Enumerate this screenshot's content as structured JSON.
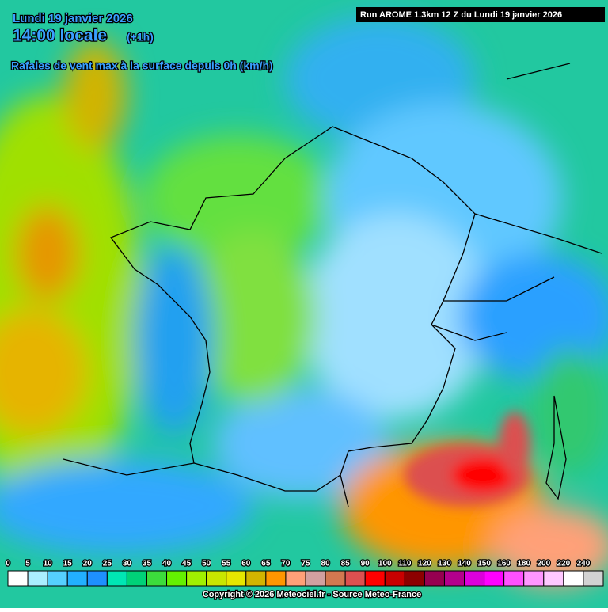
{
  "header": {
    "date": "Lundi 19 janvier 2026",
    "time": "14:00 locale",
    "offset": "(+1h)",
    "subtitle": "Rafales de vent max à la surface depuis 0h (km/h)",
    "run": "Run AROME 1.3km 12 Z du Lundi 19 janvier 2026"
  },
  "legend": {
    "items": [
      {
        "value": 0,
        "color": "#ffffff"
      },
      {
        "value": 5,
        "color": "#aaeeff"
      },
      {
        "value": 10,
        "color": "#55d0ff"
      },
      {
        "value": 15,
        "color": "#22b0ff"
      },
      {
        "value": 20,
        "color": "#1e90ff"
      },
      {
        "value": 25,
        "color": "#00e6b4"
      },
      {
        "value": 30,
        "color": "#00d278"
      },
      {
        "value": 35,
        "color": "#3cdc3c"
      },
      {
        "value": 40,
        "color": "#64f000"
      },
      {
        "value": 45,
        "color": "#a0f000"
      },
      {
        "value": 50,
        "color": "#c8e600"
      },
      {
        "value": 55,
        "color": "#e6e600"
      },
      {
        "value": 60,
        "color": "#d2b400"
      },
      {
        "value": 65,
        "color": "#ff9600"
      },
      {
        "value": 70,
        "color": "#ffa078"
      },
      {
        "value": 75,
        "color": "#d2a0a0"
      },
      {
        "value": 80,
        "color": "#d27850"
      },
      {
        "value": 85,
        "color": "#dc5050"
      },
      {
        "value": 90,
        "color": "#ff0000"
      },
      {
        "value": 100,
        "color": "#c80000"
      },
      {
        "value": 110,
        "color": "#8c0000"
      },
      {
        "value": 120,
        "color": "#960050"
      },
      {
        "value": 130,
        "color": "#b4008c"
      },
      {
        "value": 140,
        "color": "#dc00dc"
      },
      {
        "value": 150,
        "color": "#ff00ff"
      },
      {
        "value": 160,
        "color": "#ff50ff"
      },
      {
        "value": 180,
        "color": "#ff96ff"
      },
      {
        "value": 200,
        "color": "#ffc8ff"
      },
      {
        "value": 220,
        "color": "#ffffff"
      },
      {
        "value": 240,
        "color": "#d2d2d2"
      }
    ]
  },
  "footer": {
    "copyright": "Copyright © 2026 Meteociel.fr - Source Meteo-France"
  }
}
